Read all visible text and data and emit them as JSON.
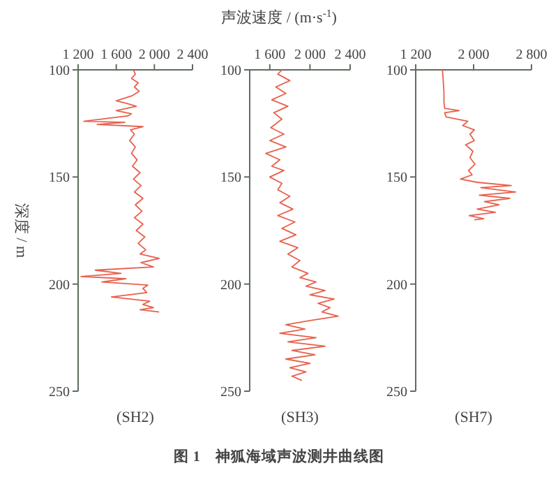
{
  "chart_data": [
    {
      "type": "line",
      "ylabel": "深度 / m",
      "xlabel": "(SH2)",
      "xlim": [
        1200,
        2400
      ],
      "xticks": [
        {
          "value": 1200,
          "label": "1 200"
        },
        {
          "value": 1600,
          "label": "1 600"
        },
        {
          "value": 2000,
          "label": "2 000"
        },
        {
          "value": 2400,
          "label": "2 400"
        }
      ],
      "ylim": [
        250,
        100
      ],
      "yticks": [
        100,
        150,
        200,
        250
      ],
      "series": [
        {
          "color": "#e8604c",
          "x": [
            1780,
            1800,
            1760,
            1830,
            1790,
            1840,
            1770,
            1600,
            1700,
            1810,
            1600,
            1760,
            1720,
            1260,
            1690,
            1400,
            1880,
            1750,
            1790,
            1740,
            1800,
            1760,
            1820,
            1770,
            1850,
            1780,
            1860,
            1790,
            1880,
            1800,
            1870,
            1790,
            1880,
            1810,
            1900,
            1830,
            1910,
            1850,
            2050,
            1860,
            1990,
            1380,
            1650,
            1230,
            1700,
            1450,
            1930,
            1880,
            1920,
            1550,
            1950,
            1880,
            1990,
            1850,
            2050
          ],
          "values": [
            100,
            102,
            104,
            106,
            108,
            110,
            112,
            114.5,
            115.5,
            117,
            119,
            120.5,
            121.5,
            124,
            124.5,
            125.5,
            126.5,
            128,
            130,
            133,
            136,
            139,
            142,
            145,
            148,
            151,
            154,
            157,
            160,
            163,
            166,
            169,
            172,
            175,
            178,
            181,
            184,
            186,
            188,
            190,
            192,
            193.5,
            195,
            196.5,
            197.5,
            199,
            200.5,
            202,
            204,
            206,
            208,
            209.5,
            211,
            212,
            213
          ]
        }
      ]
    },
    {
      "type": "line",
      "title": "声波速度 / (m·s$^{-1}$)",
      "xlabel": "(SH3)",
      "annotations": [
        "图 1　神狐海域声波测井曲线图"
      ],
      "xlim": [
        1400,
        2400
      ],
      "xticks": [
        {
          "value": 1600,
          "label": "1 600"
        },
        {
          "value": 2000,
          "label": "2 000"
        },
        {
          "value": 2400,
          "label": "2 400"
        }
      ],
      "ylim": [
        250,
        100
      ],
      "yticks": [
        100,
        150,
        200,
        250
      ],
      "series": [
        {
          "color": "#e8604c",
          "x": [
            1720,
            1680,
            1800,
            1660,
            1760,
            1620,
            1780,
            1640,
            1720,
            1610,
            1740,
            1600,
            1760,
            1560,
            1700,
            1620,
            1740,
            1600,
            1720,
            1680,
            1800,
            1700,
            1830,
            1680,
            1850,
            1720,
            1860,
            1700,
            1880,
            1780,
            1900,
            1820,
            1980,
            1900,
            2060,
            1960,
            2150,
            2000,
            2240,
            2080,
            2200,
            2120,
            2280,
            2000,
            1760,
            1950,
            1700,
            2060,
            1780,
            2150,
            1820,
            2050,
            1760,
            2000,
            1800,
            1960,
            1820,
            1920
          ],
          "values": [
            100,
            102,
            105,
            108,
            111,
            114,
            117,
            120,
            123,
            127,
            130,
            133,
            136,
            139,
            142,
            145,
            147,
            150,
            153,
            156,
            159,
            162,
            165,
            168,
            171,
            174,
            177,
            180,
            183,
            186,
            189,
            192,
            195,
            197,
            199,
            201,
            203,
            205,
            207,
            209,
            211,
            213,
            215,
            217,
            219,
            221,
            223,
            225,
            227,
            229,
            231,
            233,
            235,
            237,
            239,
            241,
            243,
            245
          ]
        }
      ]
    },
    {
      "type": "line",
      "xlabel": "(SH7)",
      "xlim": [
        1200,
        2800
      ],
      "xticks": [
        {
          "value": 1200,
          "label": "1 200"
        },
        {
          "value": 2000,
          "label": "2 000"
        },
        {
          "value": 2800,
          "label": "2 800"
        }
      ],
      "ylim": [
        250,
        100
      ],
      "yticks": [
        100,
        150,
        200,
        250
      ],
      "series": [
        {
          "color": "#e8604c",
          "x": [
            1570,
            1580,
            1590,
            1590,
            1600,
            1800,
            1600,
            1620,
            1920,
            1850,
            2010,
            1950,
            2010,
            1890,
            1990,
            1950,
            2020,
            1930,
            1980,
            1820,
            2050,
            2520,
            2100,
            2580,
            2080,
            2500,
            2150,
            2350,
            2050,
            2300,
            1940,
            2140,
            2010
          ],
          "values": [
            100,
            105,
            110,
            115,
            118,
            119,
            120,
            122,
            124,
            126,
            128,
            130,
            133,
            135,
            138,
            141,
            144,
            147,
            149,
            151,
            152.5,
            154,
            155,
            157,
            158.5,
            160,
            161.5,
            163,
            165,
            166.5,
            168,
            169.5,
            170
          ]
        }
      ]
    }
  ]
}
